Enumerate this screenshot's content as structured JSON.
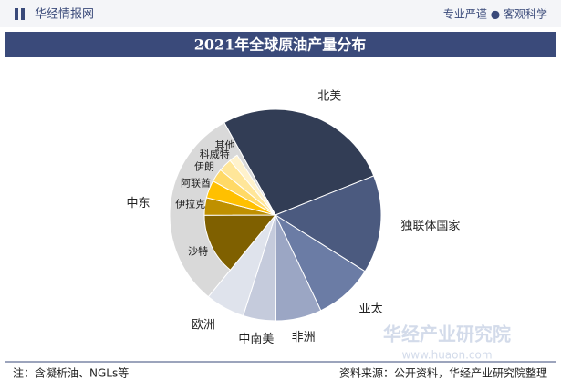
{
  "header": {
    "logo": "华经情报网",
    "slogan": "专业严谨 ● 客观科学"
  },
  "chart_data": {
    "type": "pie",
    "title": "2021年全球原油产量分布",
    "categories": [
      "北美",
      "独联体国家",
      "亚太",
      "非洲",
      "中南美",
      "欧洲",
      "中东"
    ],
    "values": [
      27,
      15,
      9,
      7,
      5,
      6,
      31
    ],
    "colors": [
      "#323d55",
      "#4b5a7f",
      "#6b7ca5",
      "#9ba6c4",
      "#c5cbdc",
      "#dfe3ec",
      "#d9d9d9"
    ],
    "sub": {
      "parent": "中东",
      "categories": [
        "沙特",
        "伊拉克",
        "阿联酋",
        "伊朗",
        "科威特",
        "其他"
      ],
      "values": [
        14,
        4,
        4,
        3,
        3,
        2
      ],
      "colors": [
        "#7f6000",
        "#bf9000",
        "#ffc000",
        "#ffd966",
        "#ffe699",
        "#fff2cc"
      ]
    }
  },
  "watermark": "华经产业研究院",
  "watermark_url": "www.huaon.com",
  "footer": {
    "note": "注：含凝析油、NGLs等",
    "source": "资料来源：公开资料，华经产业研究院整理"
  }
}
